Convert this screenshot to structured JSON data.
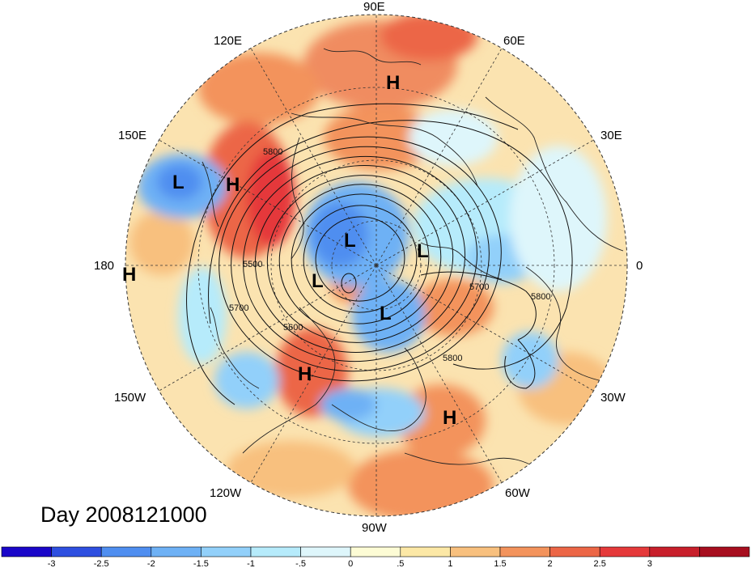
{
  "title": "Day 2008121000",
  "projection": "north-polar-stereographic",
  "longitude_labels": [
    {
      "text": "90E",
      "lon": 90
    },
    {
      "text": "60E",
      "lon": 60
    },
    {
      "text": "30E",
      "lon": 30
    },
    {
      "text": "0",
      "lon": 0
    },
    {
      "text": "30W",
      "lon": -30
    },
    {
      "text": "60W",
      "lon": -60
    },
    {
      "text": "90W",
      "lon": -90
    },
    {
      "text": "120W",
      "lon": -120
    },
    {
      "text": "150W",
      "lon": -150
    },
    {
      "text": "180",
      "lon": 180
    },
    {
      "text": "150E",
      "lon": 150
    },
    {
      "text": "120E",
      "lon": 120
    }
  ],
  "pressure_centers": [
    {
      "type": "H",
      "lon": 90,
      "lat": 42
    },
    {
      "type": "H",
      "lon": 160,
      "lat": 45
    },
    {
      "type": "L",
      "lon": 175,
      "lat": 38
    },
    {
      "type": "H",
      "lon": 180,
      "lat": 14
    },
    {
      "type": "L",
      "lon": 90,
      "lat": 78
    },
    {
      "type": "L",
      "lon": 20,
      "lat": 65
    },
    {
      "type": "L",
      "lon": -160,
      "lat": 85
    },
    {
      "type": "L",
      "lon": -60,
      "lat": 82
    },
    {
      "type": "H",
      "lon": -110,
      "lat": 42
    },
    {
      "type": "H",
      "lon": -55,
      "lat": 30
    }
  ],
  "contour_labels": [
    {
      "text": "5800"
    },
    {
      "text": "5500"
    },
    {
      "text": "5700"
    },
    {
      "text": "5600"
    },
    {
      "text": "5700"
    },
    {
      "text": "5800"
    },
    {
      "text": "5800"
    }
  ],
  "colorbar": {
    "colors": [
      "#1a06c9",
      "#2e4fe0",
      "#4f8ef0",
      "#6eb1f5",
      "#92d0fa",
      "#b6ebfb",
      "#def6fb",
      "#fdfcd5",
      "#fce8a6",
      "#f8c07e",
      "#f3935c",
      "#ec6646",
      "#e5393a",
      "#c81f2b",
      "#a70e1f"
    ],
    "ticks": [
      "-3",
      "-2.5",
      "-2",
      "-1.5",
      "-1",
      "-.5",
      "0",
      ".5",
      "1",
      "1.5",
      "2",
      "2.5",
      "3"
    ]
  }
}
